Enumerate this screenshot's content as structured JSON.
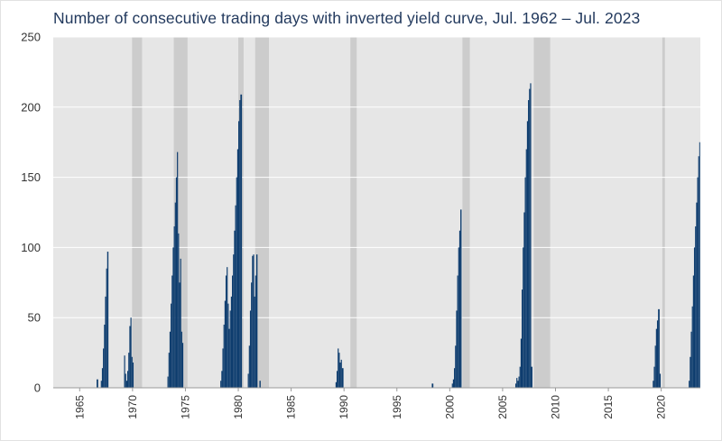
{
  "chart_data": {
    "type": "bar",
    "title": "Number of consecutive trading days with inverted yield curve, Jul. 1962 – Jul. 2023",
    "xlabel": "",
    "ylabel": "",
    "xlim": [
      1962.5,
      2023.7
    ],
    "ylim": [
      0,
      250
    ],
    "yticks": [
      0,
      50,
      100,
      150,
      200,
      250
    ],
    "xticks": [
      "1965",
      "1970",
      "1975",
      "1980",
      "1985",
      "1990",
      "1995",
      "2000",
      "2005",
      "2010",
      "2015",
      "2020"
    ],
    "grid": "horizontal",
    "colors": {
      "bars": "#0d3c6e",
      "recession": "#cccccc",
      "plot_background": "#e6e6e6",
      "title": "#233a5e"
    },
    "recessions": [
      {
        "start": 1969.95,
        "end": 1970.9
      },
      {
        "start": 1973.9,
        "end": 1975.2
      },
      {
        "start": 1980.0,
        "end": 1980.5
      },
      {
        "start": 1981.6,
        "end": 1982.9
      },
      {
        "start": 1990.6,
        "end": 1991.2
      },
      {
        "start": 2001.2,
        "end": 2001.9
      },
      {
        "start": 2007.95,
        "end": 2009.5
      },
      {
        "start": 2020.1,
        "end": 2020.35
      }
    ],
    "series": [
      {
        "points": [
          [
            1966.6,
            6
          ],
          [
            1966.75,
            0
          ],
          [
            1967.0,
            5
          ],
          [
            1967.1,
            14
          ],
          [
            1967.2,
            28
          ],
          [
            1967.3,
            45
          ],
          [
            1967.4,
            65
          ],
          [
            1967.5,
            85
          ],
          [
            1967.6,
            97
          ],
          [
            1967.72,
            0
          ],
          [
            1969.2,
            23
          ],
          [
            1969.3,
            10
          ],
          [
            1969.4,
            5
          ],
          [
            1969.5,
            12
          ],
          [
            1969.6,
            25
          ],
          [
            1969.7,
            44
          ],
          [
            1969.8,
            50
          ],
          [
            1969.9,
            22
          ],
          [
            1970.0,
            18
          ],
          [
            1970.1,
            0
          ],
          [
            1973.3,
            8
          ],
          [
            1973.4,
            25
          ],
          [
            1973.5,
            40
          ],
          [
            1973.6,
            60
          ],
          [
            1973.7,
            80
          ],
          [
            1973.8,
            100
          ],
          [
            1973.9,
            115
          ],
          [
            1974.0,
            132
          ],
          [
            1974.1,
            150
          ],
          [
            1974.2,
            168
          ],
          [
            1974.3,
            110
          ],
          [
            1974.4,
            75
          ],
          [
            1974.5,
            92
          ],
          [
            1974.6,
            40
          ],
          [
            1974.7,
            32
          ],
          [
            1974.8,
            0
          ],
          [
            1978.3,
            5
          ],
          [
            1978.4,
            12
          ],
          [
            1978.5,
            28
          ],
          [
            1978.6,
            45
          ],
          [
            1978.7,
            62
          ],
          [
            1978.8,
            80
          ],
          [
            1978.9,
            86
          ],
          [
            1979.0,
            60
          ],
          [
            1979.1,
            42
          ],
          [
            1979.2,
            55
          ],
          [
            1979.3,
            65
          ],
          [
            1979.4,
            80
          ],
          [
            1979.5,
            95
          ],
          [
            1979.6,
            112
          ],
          [
            1979.7,
            130
          ],
          [
            1979.8,
            150
          ],
          [
            1979.9,
            170
          ],
          [
            1980.0,
            190
          ],
          [
            1980.1,
            205
          ],
          [
            1980.2,
            209
          ],
          [
            1980.35,
            0
          ],
          [
            1980.9,
            10
          ],
          [
            1981.0,
            30
          ],
          [
            1981.1,
            55
          ],
          [
            1981.2,
            75
          ],
          [
            1981.3,
            94
          ],
          [
            1981.4,
            95
          ],
          [
            1981.5,
            65
          ],
          [
            1981.6,
            80
          ],
          [
            1981.7,
            95
          ],
          [
            1981.82,
            0
          ],
          [
            1982.0,
            5
          ],
          [
            1982.12,
            0
          ],
          [
            1989.2,
            4
          ],
          [
            1989.3,
            12
          ],
          [
            1989.4,
            28
          ],
          [
            1989.5,
            25
          ],
          [
            1989.6,
            18
          ],
          [
            1989.7,
            20
          ],
          [
            1989.8,
            14
          ],
          [
            1989.95,
            0
          ],
          [
            1998.3,
            3
          ],
          [
            1998.45,
            0
          ],
          [
            2000.2,
            3
          ],
          [
            2000.3,
            6
          ],
          [
            2000.4,
            14
          ],
          [
            2000.5,
            30
          ],
          [
            2000.6,
            55
          ],
          [
            2000.7,
            80
          ],
          [
            2000.8,
            100
          ],
          [
            2000.9,
            112
          ],
          [
            2001.0,
            127
          ],
          [
            2001.12,
            0
          ],
          [
            2006.2,
            3
          ],
          [
            2006.3,
            7
          ],
          [
            2006.4,
            5
          ],
          [
            2006.5,
            8
          ],
          [
            2006.6,
            15
          ],
          [
            2006.7,
            35
          ],
          [
            2006.8,
            70
          ],
          [
            2006.9,
            100
          ],
          [
            2007.0,
            125
          ],
          [
            2007.1,
            150
          ],
          [
            2007.2,
            170
          ],
          [
            2007.3,
            190
          ],
          [
            2007.4,
            205
          ],
          [
            2007.5,
            213
          ],
          [
            2007.6,
            217
          ],
          [
            2007.7,
            15
          ],
          [
            2007.82,
            0
          ],
          [
            2019.2,
            5
          ],
          [
            2019.3,
            15
          ],
          [
            2019.4,
            30
          ],
          [
            2019.5,
            42
          ],
          [
            2019.6,
            48
          ],
          [
            2019.7,
            56
          ],
          [
            2019.85,
            10
          ],
          [
            2019.95,
            0
          ],
          [
            2022.6,
            5
          ],
          [
            2022.7,
            22
          ],
          [
            2022.8,
            40
          ],
          [
            2022.9,
            58
          ],
          [
            2023.0,
            80
          ],
          [
            2023.1,
            100
          ],
          [
            2023.2,
            115
          ],
          [
            2023.3,
            132
          ],
          [
            2023.4,
            150
          ],
          [
            2023.5,
            165
          ],
          [
            2023.6,
            175
          ],
          [
            2023.68,
            0
          ]
        ]
      }
    ]
  }
}
